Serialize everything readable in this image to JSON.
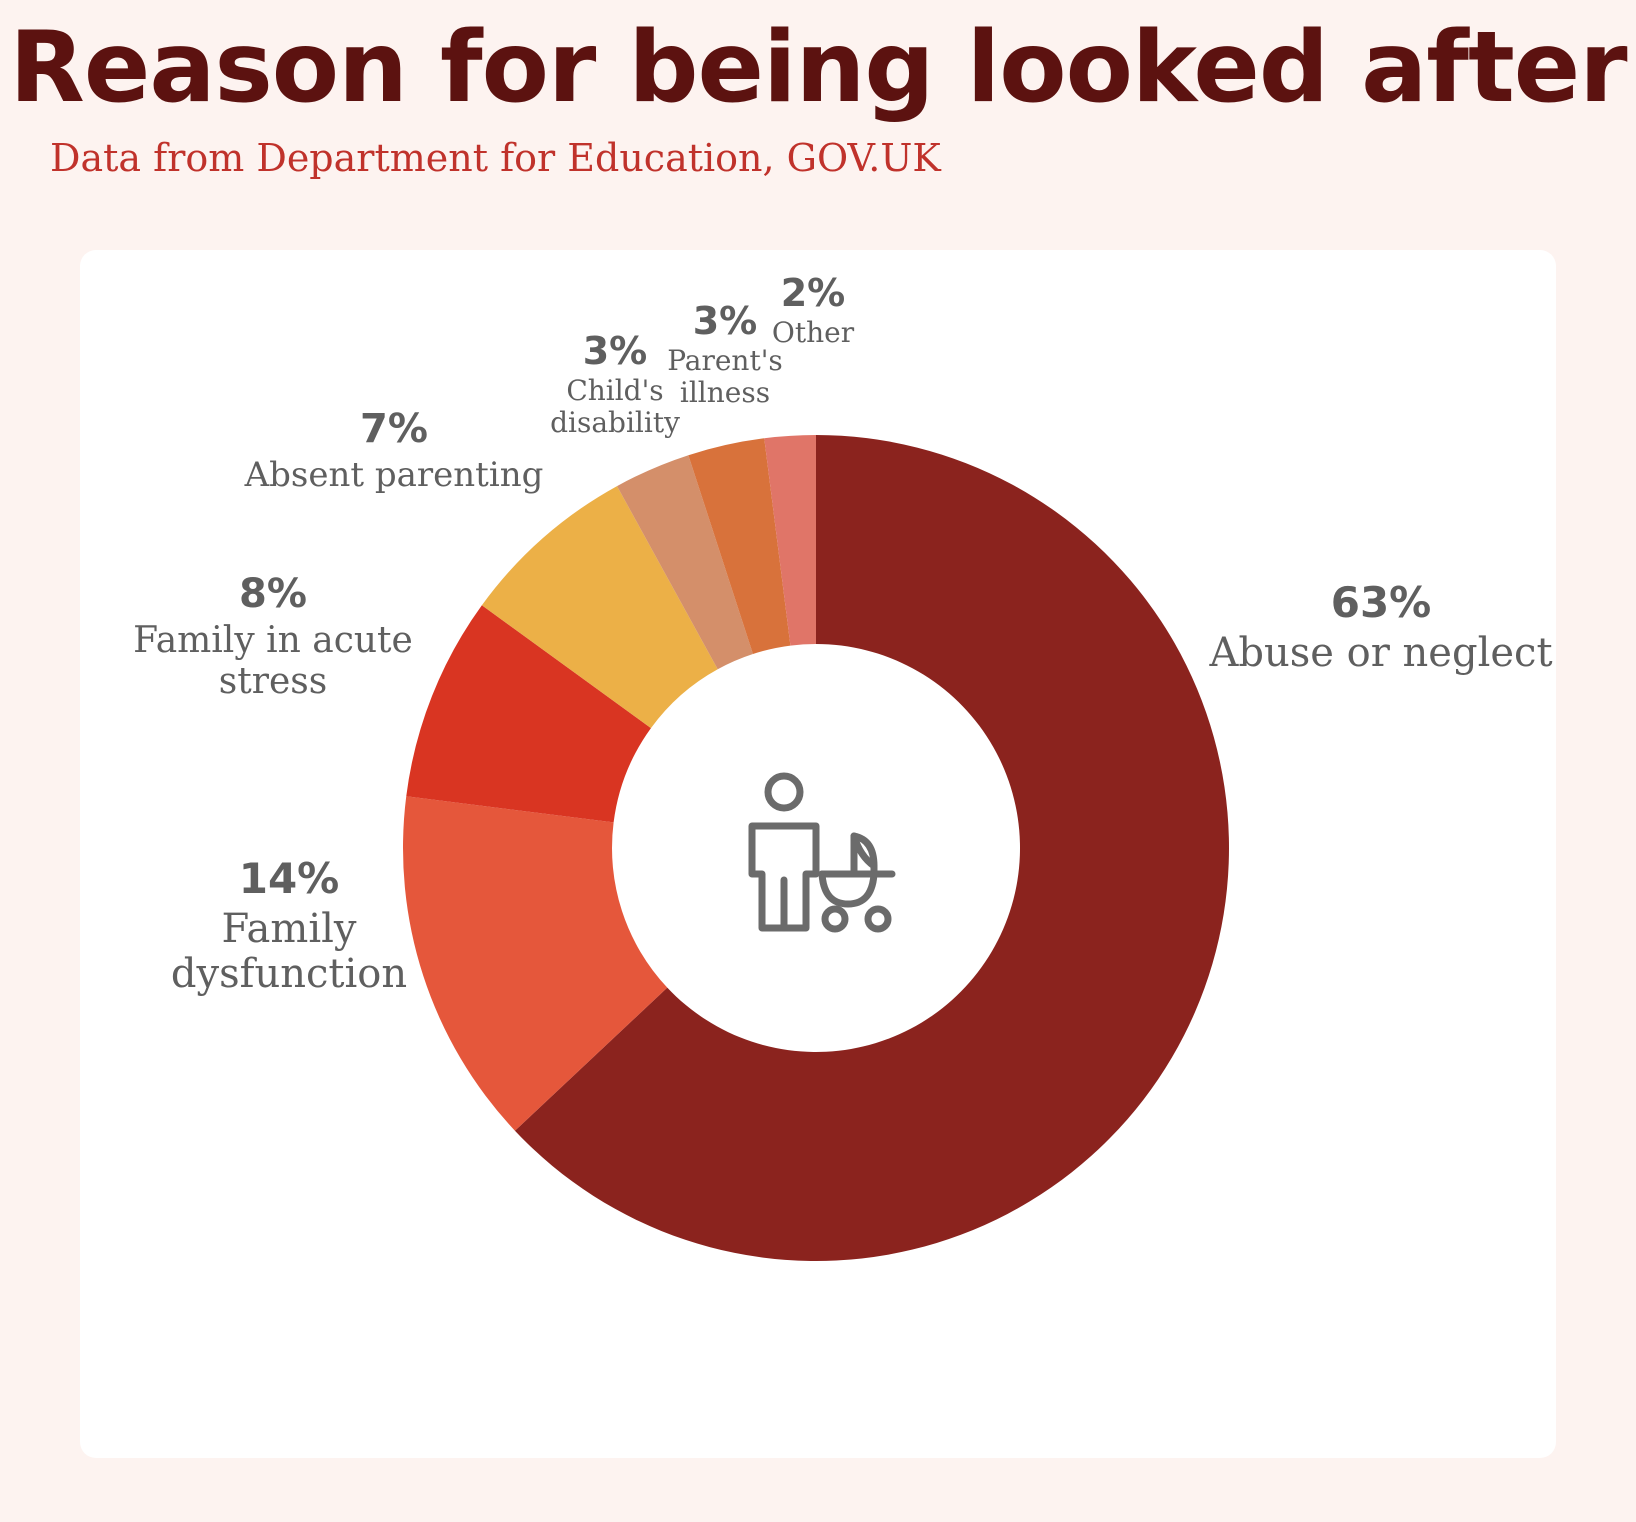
{
  "title": "Reason for being looked after",
  "subtitle": "Data from Department for Education, GOV.UK",
  "center_icon": "parent-with-pram-icon",
  "chart_data": {
    "type": "pie",
    "donut": true,
    "slices": [
      {
        "name": "Abuse or neglect",
        "value": 63,
        "label": "63%",
        "color": "#8b231e"
      },
      {
        "name": "Family dysfunction",
        "value": 14,
        "label": "14%",
        "color": "#e5573b"
      },
      {
        "name": "Family in acute stress",
        "value": 8,
        "label": "8%",
        "color": "#d93522"
      },
      {
        "name": "Absent parenting",
        "value": 7,
        "label": "7%",
        "color": "#ecb047"
      },
      {
        "name": "Child's disability",
        "value": 3,
        "label": "3%",
        "color": "#d48f6a"
      },
      {
        "name": "Parent's illness",
        "value": 3,
        "label": "3%",
        "color": "#d8723b"
      },
      {
        "name": "Other",
        "value": 2,
        "label": "2%",
        "color": "#e07568"
      }
    ]
  }
}
